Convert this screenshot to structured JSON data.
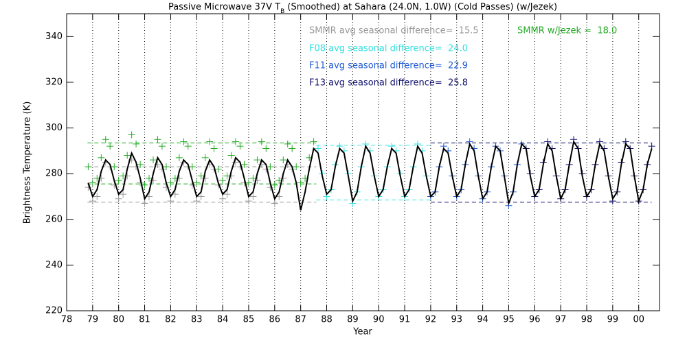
{
  "chart_data": {
    "type": "scatter",
    "title": {
      "prefix": "Passive Microwave 37V T",
      "subscript": "B",
      "suffix": " (Smoothed) at Sahara (24.0N, 1.0W) (Cold Passes) (w/Jezek)"
    },
    "x_label": "Year",
    "y_label": "Brightness Temperature (K)",
    "xlim": [
      1978,
      2000.8
    ],
    "ylim": [
      220,
      350
    ],
    "xticks": [
      {
        "value": 1978,
        "label": "78"
      },
      {
        "value": 1979,
        "label": "79"
      },
      {
        "value": 1980,
        "label": "80"
      },
      {
        "value": 1981,
        "label": "81"
      },
      {
        "value": 1982,
        "label": "82"
      },
      {
        "value": 1983,
        "label": "83"
      },
      {
        "value": 1984,
        "label": "84"
      },
      {
        "value": 1985,
        "label": "85"
      },
      {
        "value": 1986,
        "label": "86"
      },
      {
        "value": 1987,
        "label": "87"
      },
      {
        "value": 1988,
        "label": "88"
      },
      {
        "value": 1989,
        "label": "89"
      },
      {
        "value": 1990,
        "label": "90"
      },
      {
        "value": 1991,
        "label": "91"
      },
      {
        "value": 1992,
        "label": "92"
      },
      {
        "value": 1993,
        "label": "93"
      },
      {
        "value": 1994,
        "label": "94"
      },
      {
        "value": 1995,
        "label": "95"
      },
      {
        "value": 1996,
        "label": "96"
      },
      {
        "value": 1997,
        "label": "97"
      },
      {
        "value": 1998,
        "label": "98"
      },
      {
        "value": 1999,
        "label": "99"
      },
      {
        "value": 2000,
        "label": "00"
      }
    ],
    "yticks": [
      220,
      240,
      260,
      280,
      300,
      320,
      340
    ],
    "grid": true,
    "annotations": [
      {
        "text": "SMMR avg seasonal difference=  15.5",
        "color": "#999999"
      },
      {
        "text": "SMMR w/Jezek =  18.0",
        "color": "#22aa22"
      },
      {
        "text": "F08 avg seasonal difference=  24.0",
        "color": "#33e0e0"
      },
      {
        "text": "F11 avg seasonal difference=  22.9",
        "color": "#1e5bd6"
      },
      {
        "text": "F13 avg seasonal difference=  25.8",
        "color": "#10106e"
      }
    ],
    "reference_lines": [
      {
        "y": 293.5,
        "x": [
          1978.8,
          1987.6
        ],
        "color": "#22aa22"
      },
      {
        "y": 275.5,
        "x": [
          1978.8,
          1987.6
        ],
        "color": "#22aa22"
      },
      {
        "y": 283,
        "x": [
          1978.8,
          1987.6
        ],
        "color": "#999999"
      },
      {
        "y": 267.5,
        "x": [
          1978.8,
          1987.6
        ],
        "color": "#999999"
      },
      {
        "y": 292.5,
        "x": [
          1987.6,
          1992
        ],
        "color": "#33e0e0"
      },
      {
        "y": 268.5,
        "x": [
          1987.6,
          1992
        ],
        "color": "#33e0e0"
      },
      {
        "y": 293.5,
        "x": [
          1992,
          2000.5
        ],
        "color": "#10106e"
      },
      {
        "y": 267.5,
        "x": [
          1992,
          2000.5
        ],
        "color": "#10106e"
      }
    ],
    "series": [
      {
        "style": "plus",
        "color": "#999999",
        "x": [
          1978.83,
          1979,
          1979.17,
          1979.33,
          1979.5,
          1979.67,
          1979.83,
          1980,
          1980.17,
          1980.33,
          1980.5,
          1980.67,
          1980.83,
          1981,
          1981.17,
          1981.33,
          1981.5,
          1981.67,
          1981.83,
          1982,
          1982.17,
          1982.33,
          1982.5,
          1982.67,
          1982.83,
          1983,
          1983.17,
          1983.33,
          1983.5,
          1983.67,
          1983.83,
          1984,
          1984.17,
          1984.33,
          1984.5,
          1984.67,
          1984.83,
          1985,
          1985.17,
          1985.33,
          1985.5,
          1985.67,
          1985.83,
          1986,
          1986.17,
          1986.33,
          1986.5,
          1986.67
        ],
        "values": [
          274,
          268,
          270,
          278,
          285,
          283,
          275,
          269,
          271,
          279,
          286,
          283,
          276,
          267,
          270,
          277,
          284,
          282,
          274,
          268,
          271,
          278,
          285,
          283,
          275,
          268,
          270,
          278,
          284,
          282,
          275,
          269,
          271,
          279,
          285,
          283,
          276,
          268,
          270,
          277,
          284,
          282,
          274,
          267,
          270,
          278,
          284,
          282
        ]
      },
      {
        "style": "plus",
        "color": "#22aa22",
        "x": [
          1978.83,
          1979,
          1979.17,
          1979.33,
          1979.5,
          1979.67,
          1979.83,
          1980,
          1980.17,
          1980.33,
          1980.5,
          1980.67,
          1980.83,
          1981,
          1981.17,
          1981.33,
          1981.5,
          1981.67,
          1981.83,
          1982,
          1982.17,
          1982.33,
          1982.5,
          1982.67,
          1982.83,
          1983,
          1983.17,
          1983.33,
          1983.5,
          1983.67,
          1983.83,
          1984,
          1984.17,
          1984.33,
          1984.5,
          1984.67,
          1984.83,
          1985,
          1985.17,
          1985.33,
          1985.5,
          1985.67,
          1985.83,
          1986,
          1986.17,
          1986.33,
          1986.5,
          1986.67,
          1986.83,
          1987,
          1987.17,
          1987.33,
          1987.5
        ],
        "values": [
          283,
          276,
          278,
          287,
          295,
          292,
          283,
          277,
          279,
          288,
          297,
          293,
          284,
          275,
          278,
          286,
          295,
          292,
          283,
          276,
          278,
          287,
          294,
          292,
          283,
          276,
          279,
          287,
          294,
          291,
          282,
          277,
          279,
          288,
          294,
          292,
          284,
          276,
          278,
          286,
          294,
          291,
          283,
          275,
          277,
          286,
          293,
          291,
          283,
          276,
          278,
          287,
          294
        ]
      },
      {
        "style": "plus",
        "color": "#33e0e0",
        "x": [
          1987.67,
          1987.83,
          1988,
          1988.17,
          1988.33,
          1988.5,
          1988.67,
          1988.83,
          1989,
          1989.17,
          1989.33,
          1989.5,
          1989.67,
          1989.83,
          1990,
          1990.17,
          1990.33,
          1990.5,
          1990.67,
          1990.83,
          1991,
          1991.17,
          1991.33,
          1991.5,
          1991.67,
          1991.83
        ],
        "values": [
          291,
          280,
          270,
          273,
          284,
          292,
          290,
          280,
          267,
          272,
          283,
          293,
          290,
          279,
          270,
          273,
          283,
          292,
          290,
          280,
          270,
          273,
          283,
          293,
          290,
          279
        ]
      },
      {
        "style": "plus",
        "color": "#1e5bd6",
        "x": [
          1992,
          1992.17,
          1992.33,
          1992.5,
          1992.67,
          1992.83,
          1993,
          1993.17,
          1993.33,
          1993.5,
          1993.67,
          1993.83,
          1994,
          1994.17,
          1994.33,
          1994.5,
          1994.67,
          1994.83,
          1995,
          1995.17,
          1995.33,
          1995.5
        ],
        "values": [
          270,
          272,
          283,
          292,
          290,
          279,
          270,
          273,
          284,
          294,
          291,
          279,
          269,
          272,
          283,
          292,
          290,
          279,
          266,
          272,
          284,
          293
        ]
      },
      {
        "style": "plus",
        "color": "#10106e",
        "x": [
          1995.67,
          1995.83,
          1996,
          1996.17,
          1996.33,
          1996.5,
          1996.67,
          1996.83,
          1997,
          1997.17,
          1997.33,
          1997.5,
          1997.67,
          1997.83,
          1998,
          1998.17,
          1998.33,
          1998.5,
          1998.67,
          1998.83,
          1999,
          1999.17,
          1999.33,
          1999.5,
          1999.67,
          1999.83,
          2000,
          2000.17,
          2000.33,
          2000.5
        ],
        "values": [
          291,
          280,
          270,
          273,
          285,
          294,
          291,
          279,
          269,
          273,
          284,
          295,
          291,
          280,
          270,
          273,
          284,
          294,
          291,
          279,
          268,
          272,
          285,
          294,
          291,
          279,
          268,
          273,
          284,
          292
        ]
      },
      {
        "style": "line",
        "color": "#000000",
        "x": [
          1978.83,
          1979,
          1979.17,
          1979.33,
          1979.5,
          1979.67,
          1979.83,
          1980,
          1980.17,
          1980.33,
          1980.5,
          1980.67,
          1980.83,
          1981,
          1981.17,
          1981.33,
          1981.5,
          1981.67,
          1981.83,
          1982,
          1982.17,
          1982.33,
          1982.5,
          1982.67,
          1982.83,
          1983,
          1983.17,
          1983.33,
          1983.5,
          1983.67,
          1983.83,
          1984,
          1984.17,
          1984.33,
          1984.5,
          1984.67,
          1984.83,
          1985,
          1985.17,
          1985.33,
          1985.5,
          1985.67,
          1985.83,
          1986,
          1986.17,
          1986.33,
          1986.5,
          1986.67,
          1986.83,
          1987,
          1987.17,
          1987.33,
          1987.5,
          1987.67,
          1987.83,
          1988,
          1988.17,
          1988.33,
          1988.5,
          1988.67,
          1988.83,
          1989,
          1989.17,
          1989.33,
          1989.5,
          1989.67,
          1989.83,
          1990,
          1990.17,
          1990.33,
          1990.5,
          1990.67,
          1990.83,
          1991,
          1991.17,
          1991.33,
          1991.5,
          1991.67,
          1991.83,
          1992,
          1992.17,
          1992.33,
          1992.5,
          1992.67,
          1992.83,
          1993,
          1993.17,
          1993.33,
          1993.5,
          1993.67,
          1993.83,
          1994,
          1994.17,
          1994.33,
          1994.5,
          1994.67,
          1994.83,
          1995,
          1995.17,
          1995.33,
          1995.5,
          1995.67,
          1995.83,
          1996,
          1996.17,
          1996.33,
          1996.5,
          1996.67,
          1996.83,
          1997,
          1997.17,
          1997.33,
          1997.5,
          1997.67,
          1997.83,
          1998,
          1998.17,
          1998.33,
          1998.5,
          1998.67,
          1998.83,
          1999,
          1999.17,
          1999.33,
          1999.5,
          1999.67,
          1999.83,
          2000,
          2000.17,
          2000.33,
          2000.5
        ],
        "values": [
          276,
          270,
          273,
          281,
          286,
          284,
          277,
          271,
          273,
          282,
          289,
          285,
          278,
          269,
          272,
          280,
          287,
          284,
          276,
          270,
          273,
          281,
          286,
          284,
          277,
          270,
          272,
          281,
          286,
          283,
          276,
          271,
          273,
          281,
          287,
          285,
          278,
          270,
          272,
          280,
          286,
          284,
          276,
          269,
          272,
          280,
          286,
          283,
          276,
          264,
          272,
          282,
          291,
          289,
          279,
          271,
          273,
          283,
          291,
          289,
          279,
          268,
          272,
          283,
          292,
          289,
          279,
          270,
          273,
          283,
          291,
          289,
          279,
          270,
          273,
          283,
          292,
          289,
          279,
          270,
          272,
          283,
          291,
          289,
          279,
          270,
          273,
          284,
          293,
          290,
          279,
          269,
          272,
          283,
          292,
          290,
          279,
          267,
          272,
          284,
          293,
          291,
          279,
          270,
          273,
          284,
          293,
          290,
          279,
          269,
          273,
          284,
          294,
          291,
          279,
          270,
          273,
          284,
          293,
          290,
          279,
          269,
          272,
          284,
          293,
          291,
          279,
          268,
          273,
          284,
          291
        ]
      }
    ]
  }
}
